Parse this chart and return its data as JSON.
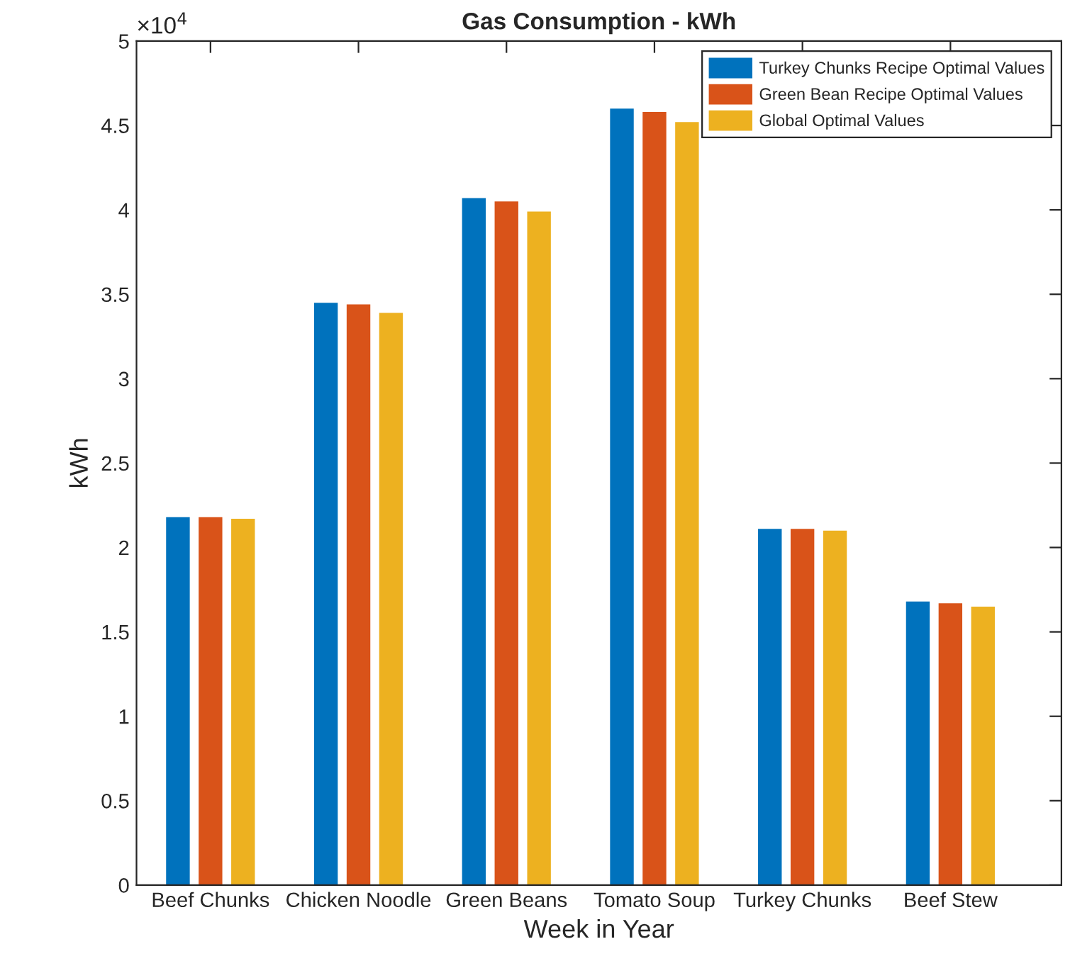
{
  "chart_data": {
    "type": "bar",
    "title": "Gas Consumption - kWh",
    "xlabel": "Week in Year",
    "ylabel": "kWh",
    "categories": [
      "Beef Chunks",
      "Chicken Noodle",
      "Green Beans",
      "Tomato Soup",
      "Turkey Chunks",
      "Beef Stew"
    ],
    "series": [
      {
        "name": "Turkey Chunks Recipe Optimal Values",
        "color": "#0072bd",
        "values": [
          2.18,
          3.45,
          4.07,
          4.6,
          2.11,
          1.68
        ]
      },
      {
        "name": "Green Bean Recipe Optimal Values",
        "color": "#d95319",
        "values": [
          2.18,
          3.44,
          4.05,
          4.58,
          2.11,
          1.67
        ]
      },
      {
        "name": "Global Optimal Values",
        "color": "#edb120",
        "values": [
          2.17,
          3.39,
          3.99,
          4.52,
          2.1,
          1.65
        ]
      }
    ],
    "ylim": [
      0,
      5
    ],
    "yticks": [
      0,
      0.5,
      1,
      1.5,
      2,
      2.5,
      3,
      3.5,
      4,
      4.5,
      5
    ],
    "annotations": [
      "×10$^{4}$"
    ],
    "legend": "top right",
    "grid": false
  }
}
